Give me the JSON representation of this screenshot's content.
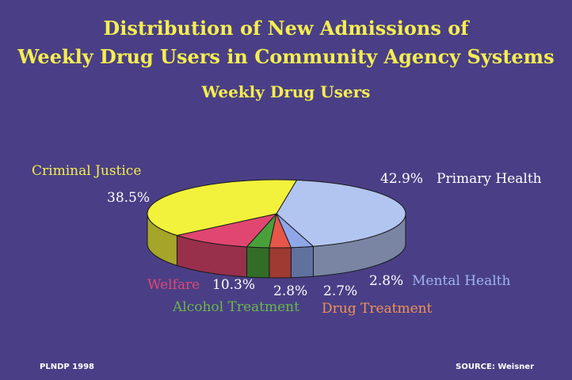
{
  "title_line1": "Distribution of New Admissions  of",
  "title_line2": "Weekly Drug Users in Community Agency Systems",
  "subtitle": "Weekly Drug Users",
  "footer_left": "PLNDP  1998",
  "footer_right": "SOURCE: Weisner",
  "chart_data": {
    "type": "pie",
    "title": "Weekly Drug Users",
    "slices": [
      {
        "name": "Primary Health",
        "value": 42.9,
        "label": "42.9%",
        "color": "#b2c4f0"
      },
      {
        "name": "Mental  Health",
        "value": 2.8,
        "label": "2.8%",
        "color": "#8fa6e8"
      },
      {
        "name": "Drug Treatment",
        "value": 2.7,
        "label": "2.7%",
        "color": "#e8564a"
      },
      {
        "name": "Alcohol Treatment",
        "value": 2.8,
        "label": "2.8%",
        "color": "#49a03a"
      },
      {
        "name": "Welfare",
        "value": 10.3,
        "label": "10.3%",
        "color": "#e04670"
      },
      {
        "name": "Criminal  Justice",
        "value": 38.5,
        "label": "38.5%",
        "color": "#f2f23c"
      }
    ],
    "label_colors": {
      "Primary Health": "#ffffff",
      "Mental  Health": "#9fb4f2",
      "Drug Treatment": "#f09058",
      "Alcohol Treatment": "#6ab84a",
      "Welfare": "#e04670",
      "Criminal  Justice": "#f4ee50",
      "values": "#ffffff"
    }
  }
}
